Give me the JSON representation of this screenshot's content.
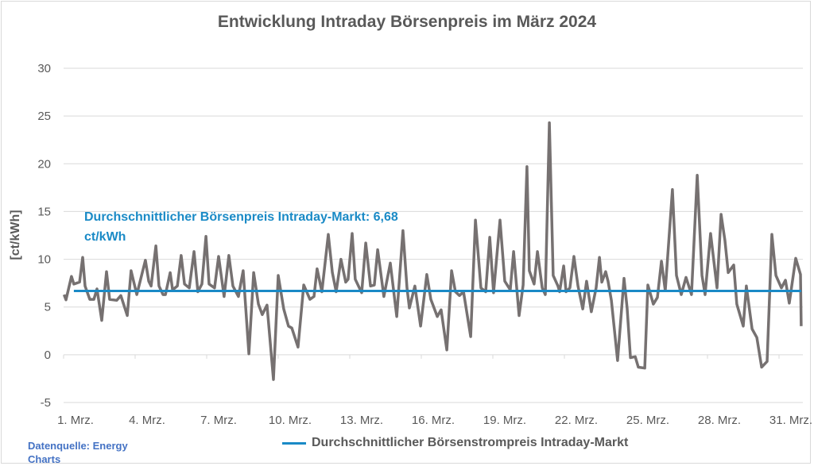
{
  "chart_data": {
    "type": "line",
    "title": "Entwicklung Intraday Börsenpreis im März 2024",
    "ylabel": "[ct/kWh]",
    "xlabel": "",
    "ylim": [
      -5,
      30
    ],
    "yticks": [
      "-5",
      "0",
      "5",
      "10",
      "15",
      "20",
      "25",
      "30"
    ],
    "ytick_values": [
      -5,
      0,
      5,
      10,
      15,
      20,
      25,
      30
    ],
    "xlim": [
      1,
      32
    ],
    "xticks": [
      "1. Mrz.",
      "4. Mrz.",
      "7. Mrz.",
      "10. Mrz.",
      "13. Mrz.",
      "16. Mrz.",
      "19. Mrz.",
      "22. Mrz.",
      "25. Mrz.",
      "28. Mrz.",
      "31. Mrz."
    ],
    "xtick_days": [
      1,
      4,
      7,
      10,
      13,
      16,
      19,
      22,
      25,
      28,
      31
    ],
    "grid": "horizontal",
    "legend_position": "bottom",
    "series": [
      {
        "color": "#767171",
        "x": [
          1.02,
          1.1,
          1.33,
          1.43,
          1.67,
          1.8,
          1.9,
          2.1,
          2.27,
          2.4,
          2.6,
          2.8,
          2.93,
          3.23,
          3.4,
          3.67,
          3.83,
          4.07,
          4.43,
          4.57,
          4.67,
          4.87,
          5.0,
          5.17,
          5.27,
          5.47,
          5.57,
          5.77,
          5.93,
          6.07,
          6.27,
          6.47,
          6.63,
          6.8,
          6.97,
          7.1,
          7.33,
          7.5,
          7.73,
          7.93,
          8.1,
          8.33,
          8.53,
          8.77,
          8.97,
          9.17,
          9.33,
          9.53,
          9.8,
          10.0,
          10.23,
          10.43,
          10.57,
          10.83,
          11.07,
          11.33,
          11.5,
          11.63,
          11.83,
          12.1,
          12.27,
          12.43,
          12.63,
          12.83,
          12.93,
          13.1,
          13.23,
          13.5,
          13.67,
          13.87,
          14.03,
          14.17,
          14.43,
          14.7,
          14.97,
          15.23,
          15.4,
          15.5,
          15.73,
          15.97,
          16.23,
          16.4,
          16.67,
          16.83,
          17.07,
          17.27,
          17.43,
          17.6,
          17.77,
          18.07,
          18.27,
          18.5,
          18.7,
          18.87,
          19.03,
          19.3,
          19.5,
          19.73,
          19.87,
          20.1,
          20.27,
          20.43,
          20.53,
          20.73,
          20.87,
          21.07,
          21.2,
          21.37,
          21.53,
          21.73,
          21.8,
          21.97,
          22.07,
          22.23,
          22.4,
          22.57,
          22.77,
          22.93,
          23.13,
          23.33,
          23.47,
          23.57,
          23.73,
          23.83,
          23.97,
          24.23,
          24.5,
          24.63,
          24.77,
          24.97,
          25.1,
          25.37,
          25.5,
          25.73,
          25.9,
          26.07,
          26.23,
          26.53,
          26.7,
          26.9,
          27.1,
          27.33,
          27.57,
          27.77,
          27.9,
          28.13,
          28.4,
          28.57,
          28.73,
          28.87,
          29.1,
          29.23,
          29.5,
          29.63,
          29.87,
          30.07,
          30.27,
          30.5,
          30.7,
          30.87,
          31.1,
          31.27,
          31.43,
          31.7,
          31.9,
          31.93
        ],
        "y": [
          6.3,
          5.75,
          8.2,
          7.4,
          7.6,
          10.2,
          7.2,
          5.8,
          5.8,
          6.9,
          3.6,
          8.7,
          5.8,
          5.7,
          6.2,
          4.1,
          8.8,
          6.3,
          9.9,
          7.7,
          7.2,
          11.4,
          7.2,
          6.3,
          6.3,
          8.6,
          6.8,
          7.2,
          10.4,
          7.4,
          7.0,
          10.8,
          6.6,
          7.4,
          12.4,
          7.4,
          7.0,
          10.3,
          6.1,
          10.4,
          7.2,
          6.1,
          8.8,
          0.1,
          8.6,
          5.3,
          4.2,
          5.2,
          -2.6,
          8.3,
          4.8,
          3.0,
          2.8,
          0.8,
          7.3,
          5.8,
          6.1,
          9.0,
          6.6,
          12.6,
          8.6,
          6.6,
          10.0,
          7.6,
          7.9,
          12.7,
          7.9,
          6.5,
          11.7,
          7.2,
          7.3,
          11.0,
          6.1,
          9.6,
          4.0,
          13.0,
          7.0,
          4.9,
          7.2,
          3.0,
          8.4,
          5.8,
          4.0,
          4.7,
          0.5,
          8.8,
          6.6,
          6.2,
          6.6,
          1.9,
          14.1,
          7.0,
          6.6,
          12.3,
          6.5,
          14.1,
          7.7,
          6.8,
          10.8,
          4.1,
          7.3,
          19.7,
          8.8,
          7.4,
          10.8,
          7.0,
          6.3,
          24.3,
          8.3,
          7.2,
          6.6,
          9.3,
          6.6,
          7.0,
          10.3,
          7.2,
          4.8,
          7.7,
          4.5,
          7.0,
          10.2,
          7.6,
          8.7,
          7.7,
          5.7,
          -0.6,
          8.0,
          4.9,
          -0.3,
          -0.2,
          -1.3,
          -1.4,
          7.3,
          5.3,
          6.0,
          9.8,
          6.7,
          17.3,
          8.3,
          6.3,
          8.1,
          6.3,
          18.8,
          8.3,
          6.3,
          12.7,
          7.0,
          14.7,
          12.0,
          8.6,
          9.4,
          5.3,
          3.0,
          7.2,
          2.7,
          1.8,
          -1.3,
          -0.7,
          12.6,
          8.3,
          7.0,
          7.8,
          5.4,
          10.1,
          8.4,
          3.0
        ]
      },
      {
        "name": "Durchschnittlicher Börsenstrompreis Intraday-Markt",
        "color": "#1a8ac6",
        "x": [
          1.43,
          31.93
        ],
        "y": [
          6.68,
          6.68
        ]
      }
    ],
    "annotation": "Durchschnittlicher Börsenpreis Intraday-Markt: 6,68 ct/kWh",
    "source": "Datenquelle: Energy Charts"
  }
}
